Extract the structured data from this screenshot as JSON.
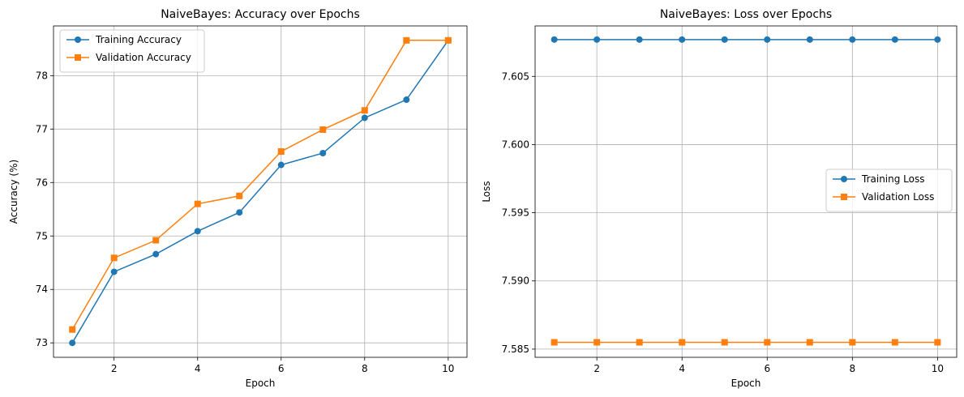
{
  "chart_data": [
    {
      "type": "line",
      "title": "NaiveBayes: Accuracy over Epochs",
      "xlabel": "Epoch",
      "ylabel": "Accuracy (%)",
      "xlim": [
        0.55,
        10.45
      ],
      "ylim": [
        72.73,
        78.93
      ],
      "xticks": [
        2,
        4,
        6,
        8,
        10
      ],
      "yticks": [
        73,
        74,
        75,
        76,
        77,
        78
      ],
      "ytick_labels": [
        "73",
        "74",
        "75",
        "76",
        "77",
        "78"
      ],
      "grid": true,
      "legend_position": "upper-left",
      "x": [
        1,
        2,
        3,
        4,
        5,
        6,
        7,
        8,
        9,
        10
      ],
      "series": [
        {
          "name": "Training Accuracy",
          "color": "#1f77b4",
          "marker": "circle",
          "values": [
            73.0,
            74.33,
            74.66,
            75.09,
            75.44,
            76.33,
            76.55,
            77.21,
            77.55,
            78.66
          ]
        },
        {
          "name": "Validation Accuracy",
          "color": "#ff7f0e",
          "marker": "square",
          "values": [
            73.25,
            74.59,
            74.92,
            75.6,
            75.75,
            76.58,
            76.99,
            77.35,
            78.66,
            78.66
          ]
        }
      ]
    },
    {
      "type": "line",
      "title": "NaiveBayes: Loss over Epochs",
      "xlabel": "Epoch",
      "ylabel": "Loss",
      "xlim": [
        0.55,
        10.45
      ],
      "ylim": [
        7.5844,
        7.6087
      ],
      "xticks": [
        2,
        4,
        6,
        8,
        10
      ],
      "yticks": [
        7.585,
        7.59,
        7.595,
        7.6,
        7.605
      ],
      "ytick_labels": [
        "7.585",
        "7.590",
        "7.595",
        "7.600",
        "7.605"
      ],
      "grid": true,
      "legend_position": "center-right",
      "x": [
        1,
        2,
        3,
        4,
        5,
        6,
        7,
        8,
        9,
        10
      ],
      "series": [
        {
          "name": "Training Loss",
          "color": "#1f77b4",
          "marker": "circle",
          "values": [
            7.6077,
            7.6077,
            7.6077,
            7.6077,
            7.6077,
            7.6077,
            7.6077,
            7.6077,
            7.6077,
            7.6077
          ]
        },
        {
          "name": "Validation Loss",
          "color": "#ff7f0e",
          "marker": "square",
          "values": [
            7.5855,
            7.5855,
            7.5855,
            7.5855,
            7.5855,
            7.5855,
            7.5855,
            7.5855,
            7.5855,
            7.5855
          ]
        }
      ]
    }
  ]
}
